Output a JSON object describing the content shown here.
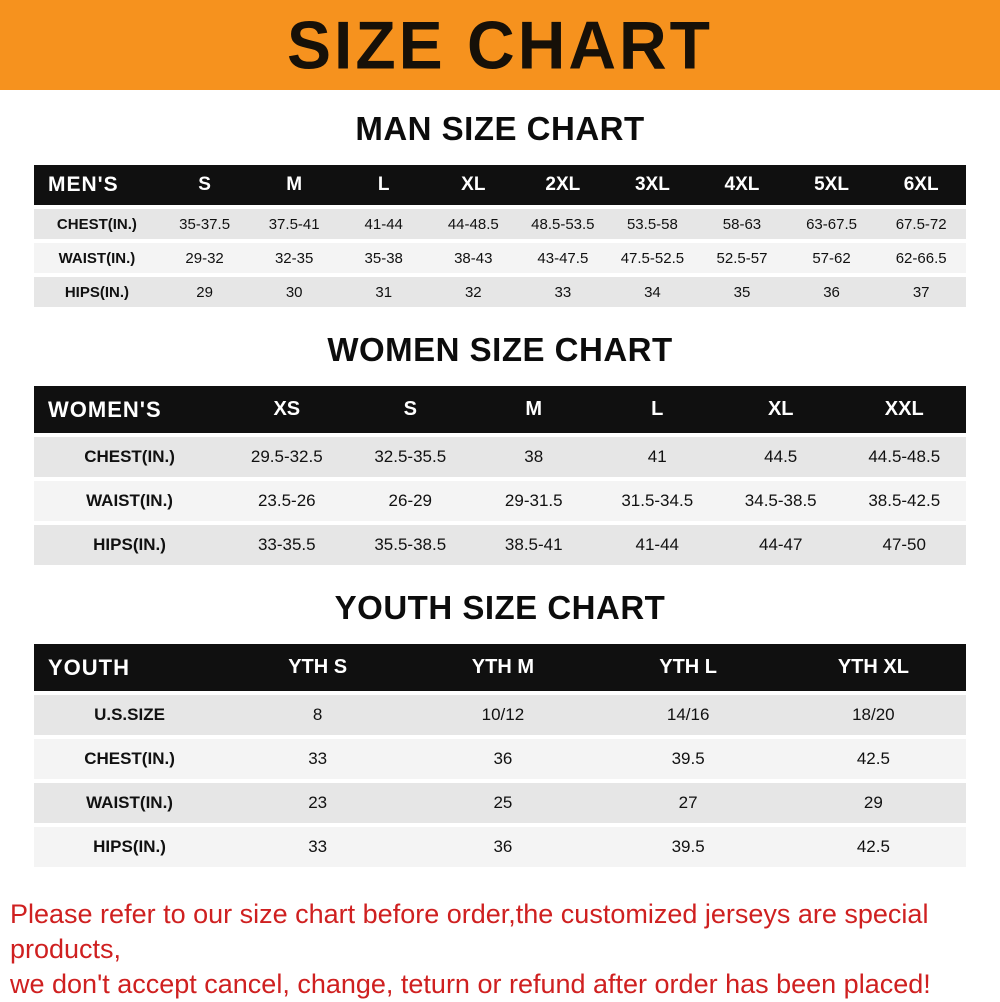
{
  "banner": {
    "title": "SIZE CHART"
  },
  "colors": {
    "banner-bg": "#f6921e",
    "header-row-bg": "#101010",
    "stripe-gray": "#e6e6e6",
    "stripe-light": "#f4f4f4",
    "footer-red": "#cf2020"
  },
  "sections": [
    {
      "id": "men",
      "heading": "MAN SIZE CHART",
      "header": [
        "MEN'S",
        "S",
        "M",
        "L",
        "XL",
        "2XL",
        "3XL",
        "4XL",
        "5XL",
        "6XL"
      ],
      "rows": [
        [
          "CHEST(IN.)",
          "35-37.5",
          "37.5-41",
          "41-44",
          "44-48.5",
          "48.5-53.5",
          "53.5-58",
          "58-63",
          "63-67.5",
          "67.5-72"
        ],
        [
          "WAIST(IN.)",
          "29-32",
          "32-35",
          "35-38",
          "38-43",
          "43-47.5",
          "47.5-52.5",
          "52.5-57",
          "57-62",
          "62-66.5"
        ],
        [
          "HIPS(IN.)",
          "29",
          "30",
          "31",
          "32",
          "33",
          "34",
          "35",
          "36",
          "37"
        ]
      ]
    },
    {
      "id": "women",
      "heading": "WOMEN SIZE CHART",
      "header": [
        "WOMEN'S",
        "XS",
        "S",
        "M",
        "L",
        "XL",
        "XXL"
      ],
      "rows": [
        [
          "CHEST(IN.)",
          "29.5-32.5",
          "32.5-35.5",
          "38",
          "41",
          "44.5",
          "44.5-48.5"
        ],
        [
          "WAIST(IN.)",
          "23.5-26",
          "26-29",
          "29-31.5",
          "31.5-34.5",
          "34.5-38.5",
          "38.5-42.5"
        ],
        [
          "HIPS(IN.)",
          "33-35.5",
          "35.5-38.5",
          "38.5-41",
          "41-44",
          "44-47",
          "47-50"
        ]
      ]
    },
    {
      "id": "youth",
      "heading": "YOUTH SIZE CHART",
      "header": [
        "YOUTH",
        "YTH S",
        "YTH M",
        "YTH L",
        "YTH XL"
      ],
      "rows": [
        [
          "U.S.SIZE",
          "8",
          "10/12",
          "14/16",
          "18/20"
        ],
        [
          "CHEST(IN.)",
          "33",
          "36",
          "39.5",
          "42.5"
        ],
        [
          "WAIST(IN.)",
          "23",
          "25",
          "27",
          "29"
        ],
        [
          "HIPS(IN.)",
          "33",
          "36",
          "39.5",
          "42.5"
        ]
      ]
    }
  ],
  "footer": {
    "line1": "Please refer to our size chart before order,the customized jerseys are special products,",
    "line2": "we don't accept cancel, change, teturn or refund after order has been placed!"
  }
}
